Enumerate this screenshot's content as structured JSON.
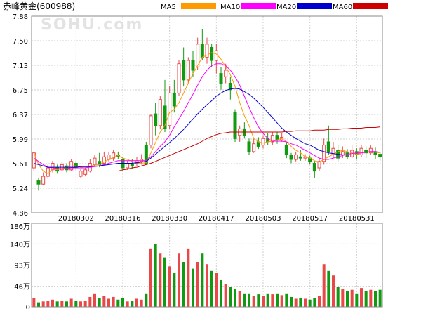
{
  "title": "赤峰黄金(600988)",
  "watermark": "SOHU.com",
  "legend": [
    {
      "name": "MA5",
      "color": "#ff9900"
    },
    {
      "name": "MA10",
      "color": "#ff00ff"
    },
    {
      "name": "MA20",
      "color": "#0000cc"
    },
    {
      "name": "MA60",
      "color": "#cc0000"
    }
  ],
  "colors": {
    "up": "#e84848",
    "down": "#119911",
    "grid": "#cfcfcf",
    "axis": "#999999"
  },
  "chart_data": {
    "type": "candlestick",
    "price_axis": {
      "ticks": [
        "7.88",
        "7.50",
        "7.13",
        "6.75",
        "6.37",
        "5.99",
        "5.61",
        "5.24",
        "4.86"
      ],
      "min": 4.86,
      "max": 7.88
    },
    "date_labels": [
      "20180302",
      "20180316",
      "20180330",
      "20180417",
      "20180503",
      "20180517",
      "20180531"
    ],
    "date_label_index": [
      9,
      19,
      29,
      39,
      49,
      59,
      69
    ],
    "volume_axis": {
      "ticks": [
        "186万",
        "140万",
        "93万",
        "46万",
        "0"
      ],
      "max": 186
    },
    "candles": [
      [
        5.55,
        5.78,
        5.8,
        5.5
      ],
      [
        5.35,
        5.3,
        5.4,
        5.2
      ],
      [
        5.3,
        5.42,
        5.48,
        5.28
      ],
      [
        5.42,
        5.55,
        5.6,
        5.38
      ],
      [
        5.52,
        5.62,
        5.66,
        5.48
      ],
      [
        5.55,
        5.5,
        5.6,
        5.46
      ],
      [
        5.52,
        5.6,
        5.64,
        5.5
      ],
      [
        5.58,
        5.52,
        5.62,
        5.48
      ],
      [
        5.52,
        5.65,
        5.68,
        5.5
      ],
      [
        5.62,
        5.55,
        5.66,
        5.5
      ],
      [
        5.42,
        5.5,
        5.54,
        5.4
      ],
      [
        5.45,
        5.52,
        5.56,
        5.42
      ],
      [
        5.5,
        5.62,
        5.68,
        5.48
      ],
      [
        5.6,
        5.7,
        5.75,
        5.58
      ],
      [
        5.65,
        5.6,
        5.78,
        5.56
      ],
      [
        5.62,
        5.72,
        5.8,
        5.6
      ],
      [
        5.68,
        5.75,
        5.8,
        5.65
      ],
      [
        5.7,
        5.78,
        5.82,
        5.66
      ],
      [
        5.75,
        5.72,
        5.8,
        5.68
      ],
      [
        5.68,
        5.55,
        5.72,
        5.5
      ],
      [
        5.55,
        5.62,
        5.66,
        5.52
      ],
      [
        5.6,
        5.58,
        5.68,
        5.54
      ],
      [
        5.62,
        5.66,
        5.72,
        5.58
      ],
      [
        5.65,
        5.68,
        5.76,
        5.6
      ],
      [
        5.9,
        5.62,
        5.95,
        5.6
      ],
      [
        5.9,
        6.35,
        6.38,
        5.85
      ],
      [
        6.38,
        6.2,
        6.55,
        6.05
      ],
      [
        6.2,
        6.6,
        6.65,
        6.15
      ],
      [
        6.5,
        6.15,
        6.9,
        6.1
      ],
      [
        6.2,
        6.7,
        6.8,
        6.15
      ],
      [
        6.7,
        6.5,
        6.9,
        6.4
      ],
      [
        6.7,
        7.15,
        7.2,
        6.65
      ],
      [
        7.2,
        6.9,
        7.4,
        6.8
      ],
      [
        6.9,
        7.2,
        7.25,
        6.85
      ],
      [
        7.2,
        7.05,
        7.35,
        6.95
      ],
      [
        7.1,
        7.45,
        7.55,
        7.05
      ],
      [
        7.45,
        7.25,
        7.68,
        7.2
      ],
      [
        7.25,
        7.45,
        7.55,
        7.15
      ],
      [
        7.4,
        7.2,
        7.45,
        7.1
      ],
      [
        7.2,
        7.35,
        7.45,
        7.0
      ],
      [
        7.0,
        6.85,
        7.1,
        6.75
      ],
      [
        6.95,
        7.05,
        7.15,
        6.85
      ],
      [
        6.85,
        6.75,
        6.95,
        6.6
      ],
      [
        6.4,
        6.0,
        6.45,
        5.95
      ],
      [
        6.05,
        6.15,
        6.2,
        5.95
      ],
      [
        6.15,
        6.05,
        6.25,
        6.0
      ],
      [
        5.95,
        5.8,
        6.0,
        5.75
      ],
      [
        5.8,
        5.92,
        6.0,
        5.78
      ],
      [
        5.95,
        5.88,
        6.02,
        5.84
      ],
      [
        5.9,
        6.0,
        6.05,
        5.85
      ],
      [
        6.0,
        5.95,
        6.08,
        5.9
      ],
      [
        5.95,
        6.05,
        6.1,
        5.9
      ],
      [
        6.05,
        5.98,
        6.1,
        5.92
      ],
      [
        5.98,
        6.02,
        6.08,
        5.95
      ],
      [
        5.9,
        5.75,
        5.95,
        5.7
      ],
      [
        5.75,
        5.68,
        5.78,
        5.62
      ],
      [
        5.68,
        5.75,
        5.8,
        5.65
      ],
      [
        5.72,
        5.7,
        5.82,
        5.66
      ],
      [
        5.7,
        5.72,
        5.76,
        5.66
      ],
      [
        5.7,
        5.65,
        5.74,
        5.6
      ],
      [
        5.62,
        5.5,
        5.66,
        5.4
      ],
      [
        5.55,
        5.65,
        5.7,
        5.5
      ],
      [
        5.65,
        5.9,
        6.0,
        5.6
      ],
      [
        5.95,
        5.8,
        6.2,
        5.75
      ],
      [
        5.75,
        5.85,
        5.95,
        5.7
      ],
      [
        5.82,
        5.7,
        5.9,
        5.65
      ],
      [
        5.75,
        5.8,
        5.88,
        5.7
      ],
      [
        5.78,
        5.72,
        5.84,
        5.68
      ],
      [
        5.72,
        5.82,
        5.9,
        5.7
      ],
      [
        5.8,
        5.75,
        5.85,
        5.68
      ],
      [
        5.75,
        5.85,
        5.9,
        5.72
      ],
      [
        5.82,
        5.78,
        5.88,
        5.7
      ],
      [
        5.78,
        5.85,
        5.9,
        5.75
      ],
      [
        5.8,
        5.76,
        5.86,
        5.68
      ],
      [
        5.76,
        5.72,
        5.8,
        5.66
      ]
    ],
    "volume": [
      20,
      10,
      12,
      14,
      16,
      12,
      14,
      12,
      18,
      14,
      12,
      14,
      22,
      30,
      20,
      24,
      18,
      22,
      16,
      20,
      12,
      14,
      18,
      16,
      30,
      130,
      140,
      120,
      110,
      90,
      75,
      120,
      100,
      130,
      85,
      100,
      120,
      95,
      80,
      75,
      60,
      50,
      45,
      40,
      35,
      30,
      30,
      25,
      28,
      25,
      30,
      28,
      30,
      26,
      30,
      22,
      18,
      20,
      18,
      16,
      20,
      25,
      95,
      80,
      70,
      45,
      40,
      35,
      38,
      30,
      42,
      35,
      38,
      36,
      38
    ],
    "ma5": [
      5.78,
      5.6,
      5.5,
      5.46,
      5.53,
      5.52,
      5.54,
      5.56,
      5.58,
      5.58,
      5.56,
      5.55,
      5.57,
      5.6,
      5.6,
      5.64,
      5.68,
      5.71,
      5.74,
      5.7,
      5.68,
      5.65,
      5.63,
      5.62,
      5.63,
      5.78,
      5.94,
      6.1,
      6.2,
      6.4,
      6.45,
      6.55,
      6.7,
      6.85,
      7.0,
      7.12,
      7.25,
      7.28,
      7.32,
      7.3,
      7.22,
      7.1,
      6.98,
      6.8,
      6.55,
      6.35,
      6.2,
      6.0,
      5.95,
      5.93,
      5.95,
      5.96,
      5.98,
      6.0,
      5.95,
      5.88,
      5.82,
      5.78,
      5.72,
      5.7,
      5.66,
      5.64,
      5.68,
      5.72,
      5.76,
      5.8,
      5.82,
      5.8,
      5.78,
      5.76,
      5.78,
      5.79,
      5.8,
      5.79,
      5.78
    ],
    "ma10": [
      5.7,
      5.65,
      5.6,
      5.56,
      5.55,
      5.54,
      5.54,
      5.54,
      5.55,
      5.55,
      5.55,
      5.55,
      5.56,
      5.57,
      5.58,
      5.6,
      5.62,
      5.64,
      5.66,
      5.66,
      5.66,
      5.66,
      5.66,
      5.66,
      5.66,
      5.72,
      5.8,
      5.88,
      5.95,
      6.05,
      6.18,
      6.3,
      6.42,
      6.55,
      6.68,
      6.82,
      6.95,
      7.05,
      7.12,
      7.15,
      7.15,
      7.12,
      7.05,
      6.95,
      6.82,
      6.65,
      6.48,
      6.32,
      6.18,
      6.08,
      6.0,
      5.96,
      5.96,
      5.96,
      5.95,
      5.92,
      5.9,
      5.86,
      5.82,
      5.78,
      5.74,
      5.7,
      5.68,
      5.68,
      5.7,
      5.72,
      5.74,
      5.76,
      5.77,
      5.78,
      5.78,
      5.79,
      5.8,
      5.8,
      5.79
    ],
    "ma20": [
      5.62,
      5.6,
      5.58,
      5.56,
      5.56,
      5.56,
      5.56,
      5.56,
      5.56,
      5.56,
      5.57,
      5.57,
      5.57,
      5.58,
      5.58,
      5.59,
      5.6,
      5.61,
      5.62,
      5.62,
      5.62,
      5.62,
      5.63,
      5.64,
      5.65,
      5.7,
      5.76,
      5.82,
      5.88,
      5.94,
      6.0,
      6.07,
      6.14,
      6.22,
      6.3,
      6.38,
      6.45,
      6.52,
      6.58,
      6.65,
      6.7,
      6.74,
      6.76,
      6.77,
      6.76,
      6.72,
      6.68,
      6.62,
      6.55,
      6.48,
      6.4,
      6.32,
      6.24,
      6.16,
      6.1,
      6.05,
      6.0,
      5.96,
      5.92,
      5.9,
      5.86,
      5.82,
      5.8,
      5.78,
      5.77,
      5.76,
      5.75,
      5.75,
      5.75,
      5.75,
      5.75,
      5.75,
      5.75,
      5.75,
      5.75
    ],
    "ma60": [
      null,
      null,
      null,
      null,
      null,
      null,
      null,
      null,
      null,
      null,
      null,
      null,
      null,
      null,
      null,
      null,
      null,
      null,
      5.5,
      5.52,
      5.53,
      5.55,
      5.56,
      5.58,
      5.6,
      5.62,
      5.65,
      5.68,
      5.71,
      5.74,
      5.77,
      5.8,
      5.83,
      5.86,
      5.89,
      5.92,
      5.96,
      6.0,
      6.03,
      6.06,
      6.08,
      6.09,
      6.1,
      6.1,
      6.1,
      6.1,
      6.1,
      6.1,
      6.1,
      6.1,
      6.1,
      6.1,
      6.1,
      6.1,
      6.11,
      6.11,
      6.12,
      6.12,
      6.12,
      6.12,
      6.13,
      6.13,
      6.13,
      6.14,
      6.14,
      6.14,
      6.15,
      6.15,
      6.16,
      6.16,
      6.16,
      6.17,
      6.17,
      6.17,
      6.18
    ]
  }
}
